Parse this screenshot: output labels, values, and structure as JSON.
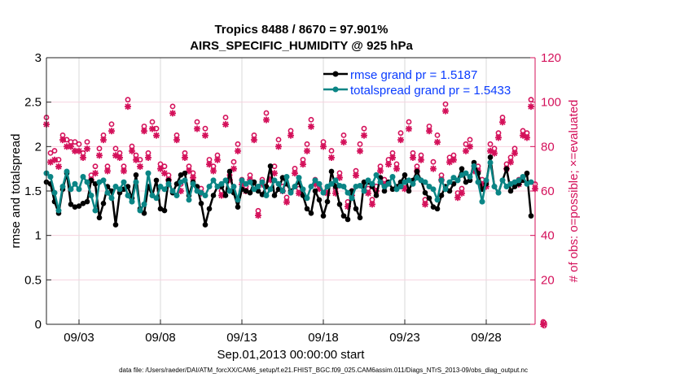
{
  "chart_data": {
    "type": "line",
    "title": [
      "Tropics 8488 / 8670 = 97.901%",
      "AIRS_SPECIFIC_HUMIDITY @ 925 hPa"
    ],
    "xlabel": "Sep.01,2013 00:00:00 start",
    "ylabel_left": "rmse and totalspread",
    "ylabel_right": "# of obs: o=possible; ×=evaluated",
    "footnote": "data file: /Users/raeder/DAI/ATM_forcXX/CAM6_setup/f.e21.FHIST_BGC.f09_025.CAM6assim.011/Diags_NTrS_2013-09/obs_diag_output.nc",
    "x_unit": "days since Sep.01,2013 00:00:00",
    "xlim": [
      0,
      30
    ],
    "x_ticks": [
      2,
      7,
      12,
      17,
      22,
      27
    ],
    "x_tick_labels": [
      "09/03",
      "09/08",
      "09/13",
      "09/18",
      "09/23",
      "09/28"
    ],
    "ylim_left": [
      0,
      3
    ],
    "y_ticks_left": [
      "0",
      "0.5",
      "1",
      "1.5",
      "2",
      "2.5",
      "3"
    ],
    "ylim_right": [
      0,
      120
    ],
    "y_ticks_right": [
      "0",
      "20",
      "40",
      "60",
      "80",
      "100",
      "120"
    ],
    "grid": true,
    "legend_position": "top-right",
    "start_day": 0,
    "step_days": 0.25,
    "series": [
      {
        "name": "rmse grand pr = 1.5187",
        "axis": "left",
        "color": "#000000",
        "values": [
          1.6,
          1.58,
          1.38,
          1.25,
          1.52,
          1.7,
          1.35,
          1.32,
          1.33,
          1.36,
          1.38,
          1.62,
          1.58,
          1.2,
          1.36,
          1.55,
          1.5,
          1.12,
          1.48,
          1.52,
          1.55,
          1.42,
          1.68,
          1.3,
          1.25,
          1.55,
          1.45,
          1.62,
          1.3,
          1.28,
          1.62,
          1.48,
          1.58,
          1.68,
          1.7,
          1.45,
          1.6,
          1.55,
          1.36,
          1.12,
          1.3,
          1.45,
          1.55,
          1.55,
          1.45,
          1.72,
          1.48,
          1.32,
          1.52,
          1.5,
          1.48,
          1.6,
          1.5,
          1.46,
          1.55,
          1.78,
          1.45,
          1.52,
          1.65,
          1.58,
          1.5,
          1.55,
          1.6,
          1.45,
          1.3,
          1.25,
          1.5,
          1.4,
          1.22,
          1.38,
          1.72,
          1.55,
          1.35,
          1.22,
          1.18,
          1.5,
          1.3,
          1.2,
          1.6,
          1.6,
          1.55,
          1.45,
          1.65,
          1.5,
          1.6,
          1.52,
          1.55,
          1.6,
          1.68,
          1.5,
          1.62,
          1.72,
          1.62,
          1.48,
          1.42,
          1.32,
          1.3,
          1.45,
          1.55,
          1.5,
          1.58,
          1.62,
          1.75,
          1.6,
          1.62,
          1.82,
          1.7,
          1.52,
          1.58,
          1.88,
          1.55,
          1.48,
          1.62,
          1.75,
          1.5,
          1.55,
          1.58,
          1.62,
          1.7,
          1.22
        ]
      },
      {
        "name": "totalspread grand pr = 1.5433",
        "axis": "left",
        "color": "#0a8585",
        "values": [
          1.7,
          1.66,
          1.48,
          1.28,
          1.55,
          1.72,
          1.52,
          1.58,
          1.52,
          1.66,
          1.6,
          1.45,
          1.28,
          1.6,
          1.62,
          1.48,
          1.42,
          1.55,
          1.52,
          1.6,
          1.45,
          1.38,
          1.6,
          1.28,
          1.35,
          1.7,
          1.45,
          1.42,
          1.55,
          1.52,
          1.58,
          1.5,
          1.45,
          1.6,
          1.62,
          1.4,
          1.58,
          1.5,
          1.48,
          1.45,
          1.55,
          1.62,
          1.55,
          1.58,
          1.62,
          1.5,
          1.55,
          1.4,
          1.62,
          1.58,
          1.6,
          1.52,
          1.55,
          1.6,
          1.45,
          1.52,
          1.62,
          1.58,
          1.5,
          1.66,
          1.48,
          1.55,
          1.65,
          1.52,
          1.42,
          1.55,
          1.62,
          1.58,
          1.48,
          1.55,
          1.58,
          1.62,
          1.56,
          1.55,
          1.48,
          1.42,
          1.55,
          1.56,
          1.5,
          1.62,
          1.58,
          1.68,
          1.6,
          1.55,
          1.58,
          1.66,
          1.52,
          1.55,
          1.6,
          1.62,
          1.58,
          1.65,
          1.62,
          1.6,
          1.55,
          1.52,
          1.4,
          1.62,
          1.52,
          1.6,
          1.65,
          1.62,
          1.68,
          1.7,
          1.66,
          1.78,
          1.6,
          1.38,
          1.62,
          1.82,
          1.55,
          1.48,
          1.62,
          1.55,
          1.58,
          1.6,
          1.62,
          1.66,
          1.58,
          1.6
        ]
      },
      {
        "name": "possible",
        "axis": "right",
        "color": "#d4105a",
        "marker": "o",
        "values": [
          92,
          76,
          77,
          73,
          84,
          82,
          81,
          81,
          80,
          76,
          81,
          66,
          70,
          78,
          84,
          70,
          89,
          78,
          76,
          70,
          100,
          79,
          75,
          73,
          88,
          76,
          90,
          87,
          71,
          70,
          66,
          97,
          84,
          62,
          76,
          70,
          67,
          90,
          60,
          87,
          73,
          70,
          75,
          59,
          92,
          66,
          72,
          80,
          64,
          61,
          66,
          84,
          50,
          64,
          94,
          66,
          70,
          82,
          61,
          56,
          86,
          69,
          60,
          73,
          80,
          91,
          64,
          62,
          81,
          60,
          77,
          60,
          67,
          84,
          54,
          59,
          68,
          80,
          87,
          60,
          55,
          61,
          70,
          64,
          73,
          76,
          71,
          85,
          62,
          90,
          76,
          70,
          75,
          55,
          88,
          72,
          84,
          66,
          98,
          74,
          75,
          58,
          60,
          80,
          82,
          70,
          70,
          64,
          63,
          80,
          78,
          85,
          92,
          71,
          74,
          78,
          64,
          86,
          85,
          100,
          62,
          0
        ]
      },
      {
        "name": "evaluated",
        "axis": "right",
        "color": "#d4105a",
        "marker": "*",
        "values": [
          90,
          73,
          74,
          71,
          83,
          80,
          80,
          78,
          78,
          75,
          79,
          65,
          68,
          76,
          83,
          69,
          87,
          76,
          75,
          69,
          98,
          78,
          74,
          71,
          87,
          75,
          88,
          85,
          70,
          68,
          65,
          95,
          83,
          60,
          75,
          69,
          66,
          88,
          59,
          85,
          72,
          69,
          74,
          58,
          90,
          65,
          70,
          78,
          63,
          60,
          65,
          83,
          49,
          63,
          92,
          65,
          68,
          80,
          60,
          55,
          85,
          68,
          59,
          72,
          78,
          89,
          63,
          61,
          80,
          59,
          75,
          59,
          66,
          82,
          53,
          58,
          67,
          78,
          85,
          59,
          54,
          60,
          69,
          63,
          72,
          75,
          70,
          83,
          61,
          88,
          75,
          69,
          74,
          54,
          87,
          70,
          82,
          65,
          96,
          73,
          74,
          57,
          59,
          78,
          80,
          69,
          69,
          63,
          62,
          78,
          77,
          84,
          91,
          70,
          73,
          77,
          63,
          85,
          84,
          98,
          61,
          0
        ]
      }
    ]
  }
}
